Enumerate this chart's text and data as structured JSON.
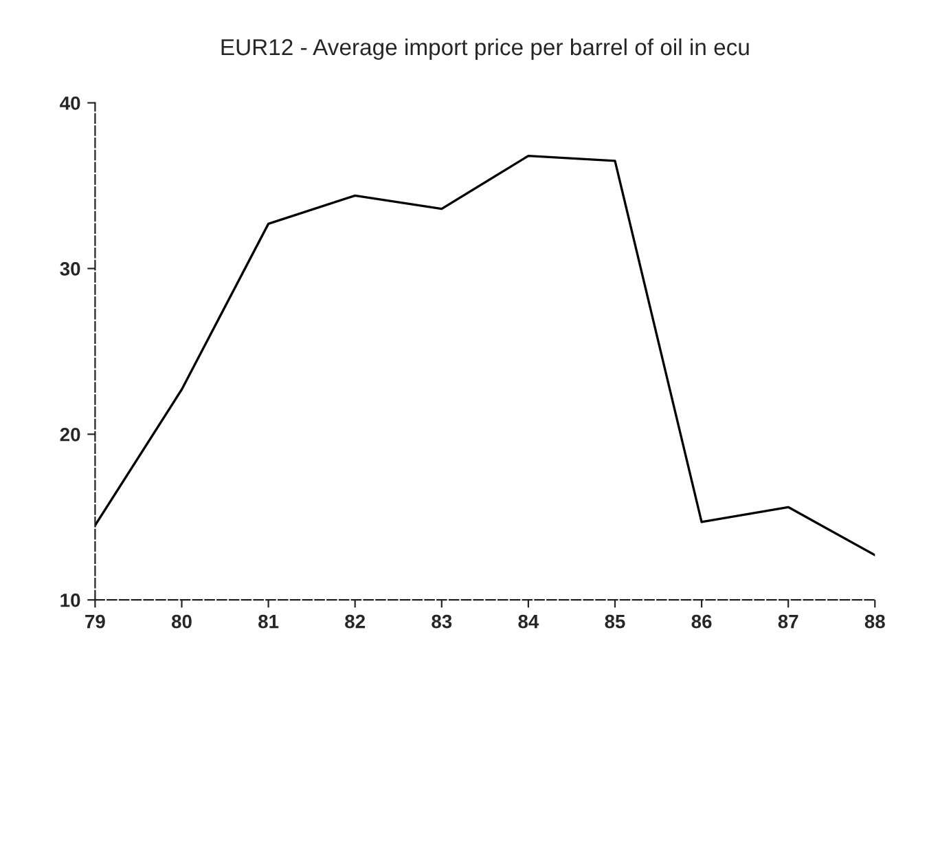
{
  "chart_data": {
    "type": "line",
    "title": "EUR12 - Average import price per barrel of oil in ecu",
    "categories": [
      "79",
      "80",
      "81",
      "82",
      "83",
      "84",
      "85",
      "86",
      "87",
      "88"
    ],
    "series": [
      {
        "color": "#000000",
        "values": [
          14.5,
          22.7,
          32.7,
          34.4,
          33.6,
          36.8,
          36.5,
          14.7,
          15.6,
          12.7
        ]
      }
    ],
    "ylim": [
      10,
      40
    ],
    "yticks": [
      10,
      20,
      30,
      40
    ],
    "grid": false,
    "marker": "none",
    "line_style": "solid"
  }
}
